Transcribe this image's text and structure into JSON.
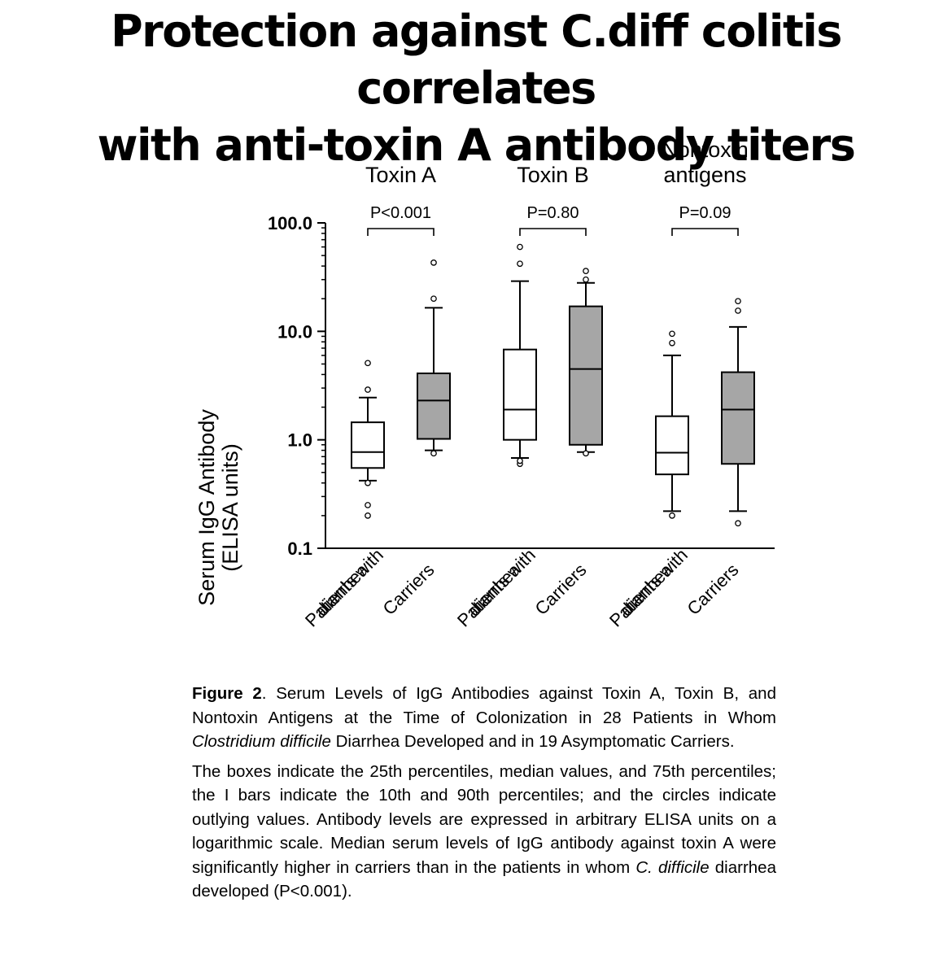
{
  "title": {
    "line1": "Protection against C.diff colitis correlates",
    "line2": "with anti-toxin A antibody titers"
  },
  "chart_data": {
    "type": "box",
    "ylabel_line1": "Serum IgG Antibody",
    "ylabel_line2": "(ELISA units)",
    "yscale": "log",
    "ylim": [
      0.1,
      100.0
    ],
    "yticks": [
      {
        "value": 0.1,
        "label": "0.1"
      },
      {
        "value": 1.0,
        "label": "1.0"
      },
      {
        "value": 10.0,
        "label": "10.0"
      },
      {
        "value": 100.0,
        "label": "100.0"
      }
    ],
    "legend": "none",
    "grid": false,
    "groups": [
      {
        "title_lines": [
          "Toxin A"
        ],
        "p_label": "P<0.001",
        "boxes": [
          {
            "category": "Patients with diarrhea",
            "fill": "#ffffff",
            "p10": 0.42,
            "q1": 0.55,
            "median": 0.77,
            "q3": 1.45,
            "p90": 2.45,
            "outliers": [
              0.2,
              0.25,
              0.4,
              2.9,
              5.1
            ]
          },
          {
            "category": "Carriers",
            "fill": "#a6a6a6",
            "p10": 0.8,
            "q1": 1.02,
            "median": 2.3,
            "q3": 4.1,
            "p90": 16.5,
            "outliers": [
              0.75,
              20.0,
              43.0
            ]
          }
        ]
      },
      {
        "title_lines": [
          "Toxin B"
        ],
        "p_label": "P=0.80",
        "boxes": [
          {
            "category": "Patients with diarrhea",
            "fill": "#ffffff",
            "p10": 0.68,
            "q1": 1.0,
            "median": 1.9,
            "q3": 6.8,
            "p90": 29.0,
            "outliers": [
              0.6,
              0.64,
              42.0,
              60.0
            ]
          },
          {
            "category": "Carriers",
            "fill": "#a6a6a6",
            "p10": 0.77,
            "q1": 0.9,
            "median": 4.5,
            "q3": 17.0,
            "p90": 28.0,
            "outliers": [
              0.75,
              30.0,
              36.0
            ]
          }
        ]
      },
      {
        "title_lines": [
          "Nontoxin",
          "antigens"
        ],
        "p_label": "P=0.09",
        "boxes": [
          {
            "category": "Patients with diarrhea",
            "fill": "#ffffff",
            "p10": 0.22,
            "q1": 0.48,
            "median": 0.76,
            "q3": 1.65,
            "p90": 6.0,
            "outliers": [
              0.2,
              7.8,
              9.5
            ]
          },
          {
            "category": "Carriers",
            "fill": "#a6a6a6",
            "p10": 0.22,
            "q1": 0.6,
            "median": 1.9,
            "q3": 4.2,
            "p90": 11.0,
            "outliers": [
              0.17,
              15.5,
              19.0
            ]
          }
        ]
      }
    ],
    "xtick_labels": [
      [
        "Patients with",
        "diarrhea"
      ],
      [
        "Carriers"
      ],
      [
        "Patients with",
        "diarrhea"
      ],
      [
        "Carriers"
      ],
      [
        "Patients with",
        "diarrhea"
      ],
      [
        "Carriers"
      ]
    ]
  },
  "caption": {
    "fig_label": "Figure 2",
    "para1_a": ". Serum Levels of IgG Antibodies against Toxin A, Toxin B, and Nontoxin Antigens at the Time of Colonization in 28 Patients in Whom ",
    "para1_italic": "Clostridium difficile",
    "para1_b": " Diarrhea Developed and in 19 Asymptomatic Carriers.",
    "para2_a": "The boxes indicate the 25th percentiles, median values, and 75th percentiles; the I bars indicate the 10th and 90th percentiles; and the circles indicate outlying values. Antibody levels are expressed in arbitrary ELISA units on a logarithmic scale. Median serum levels of IgG antibody against toxin A were significantly higher in carriers than in the patients in whom ",
    "para2_italic": "C. difficile",
    "para2_b": " diarrhea developed (P<0.001)."
  }
}
